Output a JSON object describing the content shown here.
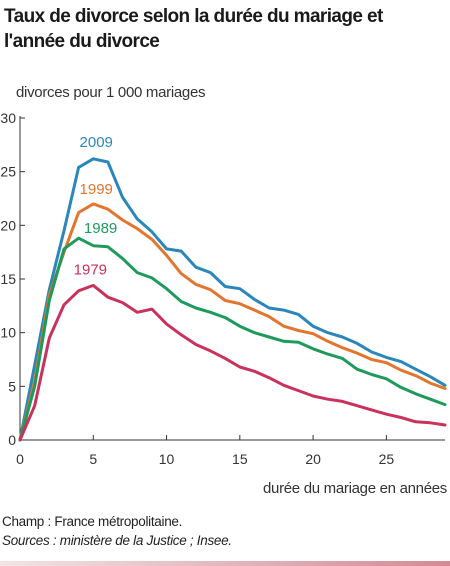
{
  "chart_data": {
    "type": "line",
    "title": "Taux de divorce selon la durée du mariage et l'année du divorce",
    "ylabel": "divorces pour 1 000 mariages",
    "xlabel": "durée du mariage en années",
    "xlim": [
      0,
      29
    ],
    "ylim": [
      0,
      30
    ],
    "xticks": [
      0,
      5,
      10,
      15,
      20,
      25
    ],
    "yticks": [
      0,
      5,
      10,
      15,
      20,
      25,
      30
    ],
    "grid": false,
    "legend": "inline labels",
    "series": [
      {
        "name": "2009",
        "color": "#2b86b9",
        "x": [
          0,
          1,
          2,
          3,
          4,
          5,
          6,
          7,
          8,
          9,
          10,
          11,
          12,
          13,
          14,
          15,
          16,
          17,
          18,
          19,
          20,
          21,
          22,
          23,
          24,
          25,
          26,
          27,
          28,
          29
        ],
        "values": [
          0,
          7,
          14,
          19.5,
          25.4,
          26.2,
          25.9,
          22.6,
          20.6,
          19.4,
          17.8,
          17.6,
          16.1,
          15.6,
          14.3,
          14.1,
          13.1,
          12.3,
          12.1,
          11.7,
          10.6,
          10,
          9.6,
          9,
          8.2,
          7.7,
          7.3,
          6.6,
          5.9,
          5.1
        ]
      },
      {
        "name": "1999",
        "color": "#e2762e",
        "x": [
          0,
          1,
          2,
          3,
          4,
          5,
          6,
          7,
          8,
          9,
          10,
          11,
          12,
          13,
          14,
          15,
          16,
          17,
          18,
          19,
          20,
          21,
          22,
          23,
          24,
          25,
          26,
          27,
          28,
          29
        ],
        "values": [
          0,
          5.5,
          13.5,
          17.5,
          21.2,
          22,
          21.5,
          20.5,
          19.7,
          18.7,
          17.2,
          15.5,
          14.5,
          14,
          13,
          12.7,
          12.1,
          11.5,
          10.6,
          10.2,
          9.9,
          9.2,
          8.6,
          8.1,
          7.5,
          7.2,
          6.5,
          6,
          5.3,
          4.8
        ]
      },
      {
        "name": "1989",
        "color": "#1e9a5c",
        "x": [
          0,
          1,
          2,
          3,
          4,
          5,
          6,
          7,
          8,
          9,
          10,
          11,
          12,
          13,
          14,
          15,
          16,
          17,
          18,
          19,
          20,
          21,
          22,
          23,
          24,
          25,
          26,
          27,
          28,
          29
        ],
        "values": [
          0,
          5,
          13,
          17.8,
          18.8,
          18.1,
          18,
          16.9,
          15.6,
          15.1,
          14.1,
          12.9,
          12.3,
          11.9,
          11.4,
          10.6,
          10,
          9.6,
          9.2,
          9.1,
          8.5,
          8,
          7.6,
          6.6,
          6.1,
          5.7,
          4.9,
          4.3,
          3.8,
          3.3
        ]
      },
      {
        "name": "1979",
        "color": "#c8325c",
        "x": [
          0,
          1,
          2,
          3,
          4,
          5,
          6,
          7,
          8,
          9,
          10,
          11,
          12,
          13,
          14,
          15,
          16,
          17,
          18,
          19,
          20,
          21,
          22,
          23,
          24,
          25,
          26,
          27,
          28,
          29
        ],
        "values": [
          0,
          3.2,
          9.5,
          12.6,
          13.9,
          14.4,
          13.3,
          12.8,
          11.9,
          12.2,
          10.8,
          9.8,
          8.9,
          8.3,
          7.6,
          6.8,
          6.4,
          5.8,
          5.1,
          4.6,
          4.1,
          3.8,
          3.6,
          3.2,
          2.8,
          2.4,
          2.1,
          1.7,
          1.6,
          1.4
        ]
      }
    ],
    "series_label_positions": [
      {
        "name": "2009",
        "x": 5.2,
        "y": 27.3
      },
      {
        "name": "1999",
        "x": 5.2,
        "y": 22.9
      },
      {
        "name": "1989",
        "x": 5.5,
        "y": 19.3
      },
      {
        "name": "1979",
        "x": 4.8,
        "y": 15.4
      }
    ]
  },
  "notes": {
    "champ": "Champ :  France métropolitaine.",
    "sources": "Sources : ministère de la Justice ; Insee."
  }
}
